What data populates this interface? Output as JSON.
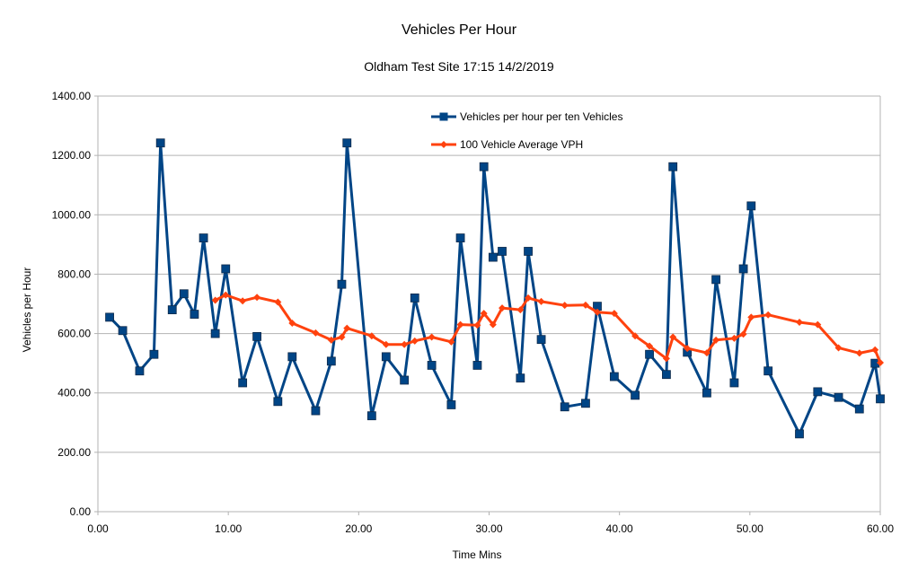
{
  "chart_data": {
    "type": "line",
    "title": "Vehicles Per Hour",
    "subtitle": "Oldham Test Site 17:15 14/2/2019",
    "xlabel": "Time Mins",
    "ylabel": "Vehicles per Hour",
    "xlim": [
      0,
      60
    ],
    "ylim": [
      0,
      1400
    ],
    "x_ticks": [
      "0.00",
      "10.00",
      "20.00",
      "30.00",
      "40.00",
      "50.00",
      "60.00"
    ],
    "y_ticks": [
      "0.00",
      "200.00",
      "400.00",
      "600.00",
      "800.00",
      "1000.00",
      "1200.00",
      "1400.00"
    ],
    "grid": true,
    "legend_position": "top-right",
    "series": [
      {
        "name": "Vehicles per hour per ten Vehicles",
        "color": "#004586",
        "marker": "square",
        "points": [
          [
            0.9,
            655
          ],
          [
            1.9,
            610
          ],
          [
            3.2,
            474
          ],
          [
            4.3,
            530
          ],
          [
            4.8,
            1242
          ],
          [
            5.7,
            680
          ],
          [
            6.6,
            734
          ],
          [
            7.4,
            665
          ],
          [
            8.1,
            922
          ],
          [
            9.0,
            600
          ],
          [
            9.8,
            818
          ],
          [
            11.1,
            434
          ],
          [
            12.2,
            590
          ],
          [
            13.8,
            371
          ],
          [
            14.9,
            522
          ],
          [
            16.7,
            340
          ],
          [
            17.9,
            507
          ],
          [
            18.7,
            766
          ],
          [
            19.1,
            1242
          ],
          [
            21.0,
            323
          ],
          [
            22.1,
            522
          ],
          [
            23.5,
            443
          ],
          [
            24.3,
            720
          ],
          [
            25.6,
            493
          ],
          [
            27.1,
            360
          ],
          [
            27.8,
            922
          ],
          [
            29.1,
            493
          ],
          [
            29.6,
            1162
          ],
          [
            30.3,
            857
          ],
          [
            31.0,
            877
          ],
          [
            32.4,
            450
          ],
          [
            33.0,
            877
          ],
          [
            34.0,
            580
          ],
          [
            35.8,
            353
          ],
          [
            37.4,
            365
          ],
          [
            38.3,
            692
          ],
          [
            39.6,
            455
          ],
          [
            41.2,
            392
          ],
          [
            42.3,
            530
          ],
          [
            43.6,
            462
          ],
          [
            44.1,
            1162
          ],
          [
            45.2,
            537
          ],
          [
            46.7,
            400
          ],
          [
            47.4,
            782
          ],
          [
            48.8,
            434
          ],
          [
            49.5,
            818
          ],
          [
            50.1,
            1030
          ],
          [
            51.4,
            474
          ],
          [
            53.8,
            262
          ],
          [
            55.2,
            404
          ],
          [
            56.8,
            385
          ],
          [
            58.4,
            346
          ],
          [
            59.6,
            500
          ],
          [
            60.0,
            380
          ]
        ]
      },
      {
        "name": "100 Vehicle Average VPH",
        "color": "#ff420e",
        "marker": "diamond",
        "points": [
          [
            9.0,
            712
          ],
          [
            9.8,
            730
          ],
          [
            11.1,
            710
          ],
          [
            12.2,
            722
          ],
          [
            13.8,
            706
          ],
          [
            14.9,
            635
          ],
          [
            16.7,
            602
          ],
          [
            17.9,
            578
          ],
          [
            18.7,
            588
          ],
          [
            19.1,
            618
          ],
          [
            21.0,
            592
          ],
          [
            22.1,
            563
          ],
          [
            23.5,
            563
          ],
          [
            24.3,
            575
          ],
          [
            25.6,
            588
          ],
          [
            27.1,
            572
          ],
          [
            27.8,
            630
          ],
          [
            29.1,
            628
          ],
          [
            29.6,
            668
          ],
          [
            30.3,
            630
          ],
          [
            31.0,
            686
          ],
          [
            32.4,
            680
          ],
          [
            33.0,
            720
          ],
          [
            34.0,
            708
          ],
          [
            35.8,
            695
          ],
          [
            37.4,
            696
          ],
          [
            38.3,
            672
          ],
          [
            39.6,
            668
          ],
          [
            41.2,
            592
          ],
          [
            42.3,
            558
          ],
          [
            43.6,
            516
          ],
          [
            44.1,
            588
          ],
          [
            45.2,
            550
          ],
          [
            46.7,
            535
          ],
          [
            47.4,
            578
          ],
          [
            48.8,
            584
          ],
          [
            49.5,
            598
          ],
          [
            50.1,
            655
          ],
          [
            51.4,
            663
          ],
          [
            53.8,
            638
          ],
          [
            55.2,
            630
          ],
          [
            56.8,
            552
          ],
          [
            58.4,
            534
          ],
          [
            59.6,
            545
          ],
          [
            60.0,
            502
          ]
        ]
      }
    ]
  }
}
